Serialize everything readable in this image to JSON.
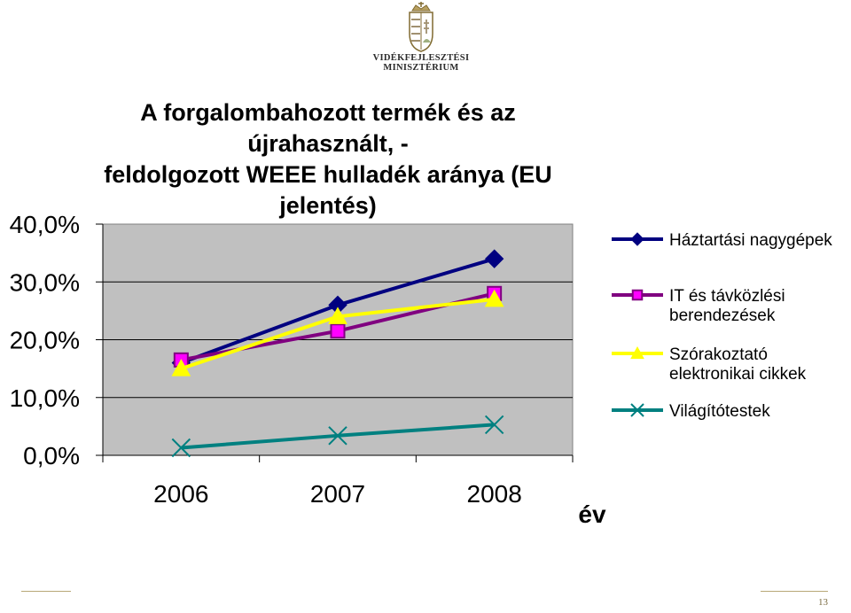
{
  "logo": {
    "line1": "VIDÉKFEJLESZTÉSI",
    "line2": "MINISZTÉRIUM"
  },
  "title": {
    "line1": "A forgalombahozott termék és az újrahasznált, -",
    "line2": "feldolgozott WEEE hulladék aránya (EU jelentés)"
  },
  "page_number": "13",
  "colors": {
    "plot_bg": "#c0c0c0",
    "navy": "#000080",
    "purple": "#800080",
    "magenta": "#ff00ff",
    "yellow": "#ffff00",
    "teal": "#008080"
  },
  "chart_data": {
    "type": "line",
    "categories": [
      "2006",
      "2007",
      "2008"
    ],
    "xlabel": "év",
    "ylabel": "",
    "ylim": [
      0,
      40
    ],
    "yticks": [
      "0,0%",
      "10,0%",
      "20,0%",
      "30,0%",
      "40,0%"
    ],
    "ytick_values": [
      0,
      10,
      20,
      30,
      40
    ],
    "grid": true,
    "legend_position": "right",
    "series": [
      {
        "name": "Háztartási nagygépek",
        "values": [
          16,
          26,
          34
        ],
        "color": "#000080",
        "fill": "#000080",
        "marker": "diamond"
      },
      {
        "name": "IT és távközlési berendezések",
        "values": [
          16.5,
          21.5,
          28
        ],
        "color": "#800080",
        "fill": "#ff00ff",
        "marker": "square"
      },
      {
        "name": "Szórakoztató elektronikai cikkek",
        "values": [
          15,
          24,
          27
        ],
        "color": "#ffff00",
        "fill": "#ffff00",
        "marker": "triangle"
      },
      {
        "name": "Világítótestek",
        "values": [
          1.3,
          3.4,
          5.3
        ],
        "color": "#008080",
        "fill": "#008080",
        "marker": "x"
      }
    ],
    "legend_lines": [
      [
        "Háztartási nagygépek"
      ],
      [
        "IT és távközlési",
        "berendezések"
      ],
      [
        "Szórakoztató",
        "elektronikai cikkek"
      ],
      [
        "Világítótestek"
      ]
    ]
  }
}
